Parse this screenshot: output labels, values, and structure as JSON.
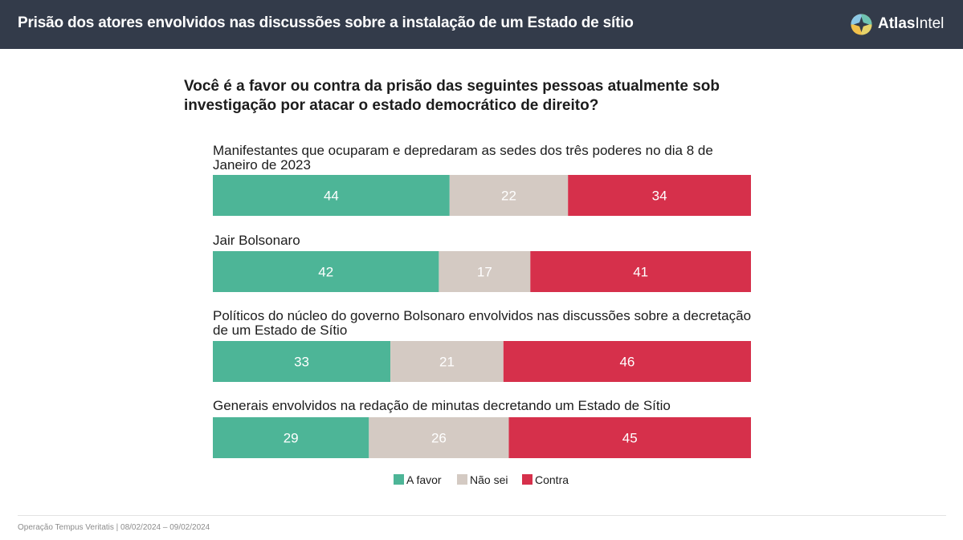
{
  "header": {
    "title": "Prisão dos atores envolvidos nas discussões sobre a instalação de um Estado de sítio",
    "brand_bold": "Atlas",
    "brand_light": "Intel",
    "background_color": "#333b4a"
  },
  "question": "Você é a favor ou contra da prisão das seguintes pessoas atualmente sob investigação por atacar o estado democrático de direito?",
  "chart_data": {
    "type": "bar",
    "stacked": true,
    "orientation": "horizontal",
    "percent_stacked": true,
    "xlim": [
      0,
      100
    ],
    "categories": [
      [
        "Manifestantes que ocuparam e depredaram as sedes dos três poderes no dia 8 de",
        "Janeiro de 2023"
      ],
      [
        "Jair Bolsonaro"
      ],
      [
        "Políticos do núcleo do governo Bolsonaro envolvidos nas discussões sobre a decretação",
        "de um Estado de Sítio"
      ],
      [
        "Generais envolvidos na redação de minutas decretando um Estado de Sítio"
      ]
    ],
    "series": [
      {
        "name": "A favor",
        "color": "#4db597",
        "label_color": "#ffffff",
        "values": [
          44,
          42,
          33,
          29
        ]
      },
      {
        "name": "Não sei",
        "color": "#d4cac3",
        "label_color": "#ffffff",
        "values": [
          22,
          17,
          21,
          26
        ]
      },
      {
        "name": "Contra",
        "color": "#d6304b",
        "label_color": "#ffffff",
        "values": [
          34,
          41,
          46,
          45
        ]
      }
    ],
    "legend_position": "bottom-center",
    "grid": false
  },
  "footer": {
    "text": "Operação Tempus Veritatis | 08/02/2024 – 09/02/2024"
  }
}
